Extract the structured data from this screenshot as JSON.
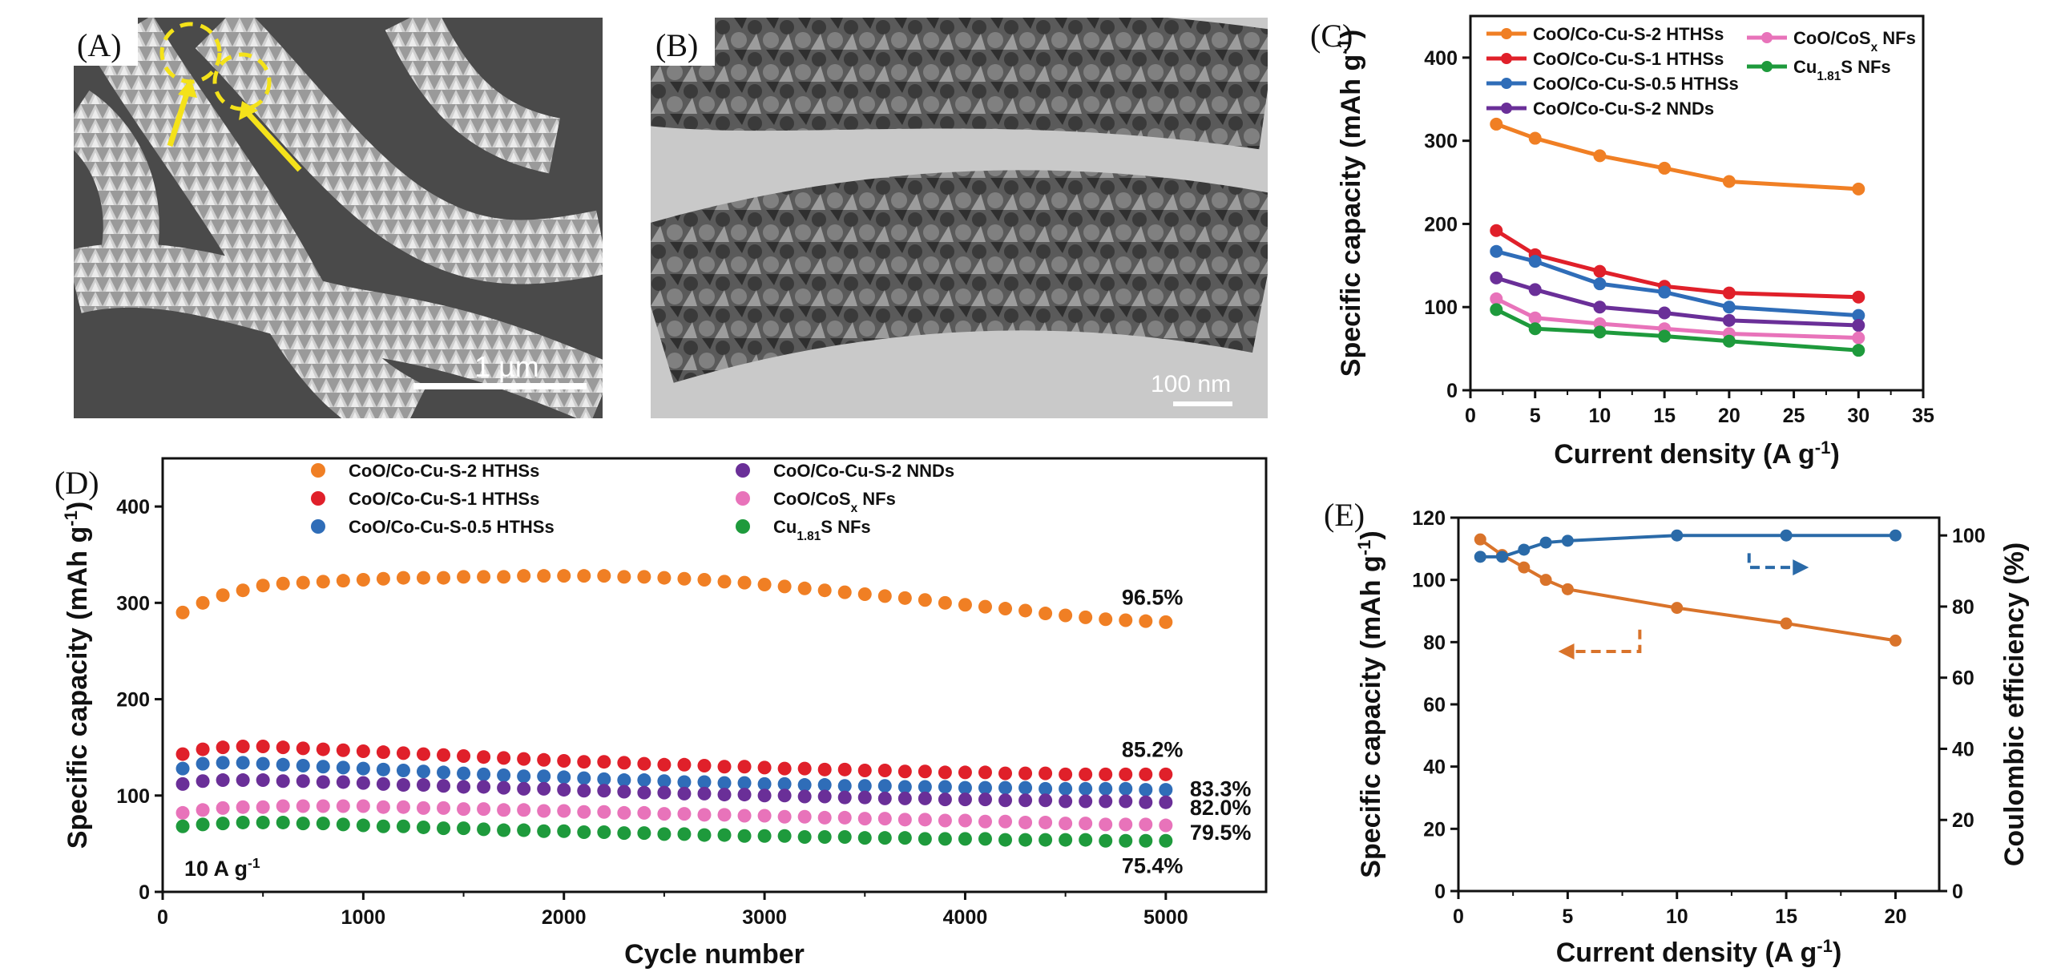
{
  "panels": {
    "A": {
      "letter": "(A)",
      "scale_bar": "1 µm"
    },
    "B": {
      "letter": "(B)",
      "scale_bar": "100 nm"
    },
    "C": {
      "letter": "(C)"
    },
    "D": {
      "letter": "(D)"
    },
    "E": {
      "letter": "(E)"
    }
  },
  "chart_data": [
    {
      "id": "C",
      "type": "line",
      "xlabel": "Current density (A g⁻¹)",
      "ylabel": "Specific capacity (mAh g⁻¹)",
      "xlim": [
        0,
        35
      ],
      "ylim": [
        0,
        450
      ],
      "xticks": [
        0,
        5,
        10,
        15,
        20,
        25,
        30,
        35
      ],
      "yticks": [
        0,
        100,
        200,
        300,
        400
      ],
      "x": [
        2,
        5,
        10,
        15,
        20,
        30
      ],
      "legend_position": "top",
      "series": [
        {
          "name": "CoO/Co-Cu-S-2 HTHSs",
          "color": "#f07f24",
          "values": [
            320,
            303,
            282,
            267,
            251,
            242
          ]
        },
        {
          "name": "CoO/Co-Cu-S-1 HTHSs",
          "color": "#e0202a",
          "values": [
            192,
            163,
            143,
            125,
            117,
            112
          ]
        },
        {
          "name": "CoO/Co-Cu-S-0.5 HTHSs",
          "color": "#2f6db8",
          "values": [
            167,
            155,
            128,
            118,
            100,
            90
          ]
        },
        {
          "name": "CoO/Co-Cu-S-2 NNDs",
          "color": "#6a2f98",
          "values": [
            135,
            121,
            100,
            93,
            84,
            78
          ]
        },
        {
          "name": "CoO/CoSx NFs",
          "color": "#e873ba",
          "values": [
            110,
            87,
            80,
            74,
            68,
            63
          ]
        },
        {
          "name": "Cu1.81S NFs",
          "color": "#1e9a3c",
          "values": [
            97,
            74,
            70,
            65,
            59,
            48
          ]
        }
      ]
    },
    {
      "id": "D",
      "type": "scatter",
      "xlabel": "Cycle number",
      "ylabel": "Specific capacity (mAh g⁻¹)",
      "xlim": [
        0,
        5500
      ],
      "ylim": [
        0,
        450
      ],
      "xticks": [
        0,
        1000,
        2000,
        3000,
        4000,
        5000
      ],
      "yticks": [
        0,
        100,
        200,
        300,
        400
      ],
      "annotation": "10 A g⁻¹",
      "x": [
        100,
        200,
        300,
        400,
        500,
        600,
        700,
        800,
        900,
        1000,
        1100,
        1200,
        1300,
        1400,
        1500,
        1600,
        1700,
        1800,
        1900,
        2000,
        2100,
        2200,
        2300,
        2400,
        2500,
        2600,
        2700,
        2800,
        2900,
        3000,
        3100,
        3200,
        3300,
        3400,
        3500,
        3600,
        3700,
        3800,
        3900,
        4000,
        4100,
        4200,
        4300,
        4400,
        4500,
        4600,
        4700,
        4800,
        4900,
        5000
      ],
      "series": [
        {
          "name": "CoO/Co-Cu-S-2 HTHSs",
          "color": "#f07f24",
          "retention": "96.5%",
          "values": [
            290,
            300,
            308,
            313,
            318,
            320,
            321,
            322,
            323,
            324,
            325,
            326,
            326,
            326,
            327,
            327,
            327,
            328,
            328,
            328,
            328,
            328,
            327,
            327,
            326,
            325,
            324,
            322,
            321,
            319,
            317,
            315,
            313,
            311,
            309,
            307,
            305,
            303,
            300,
            298,
            296,
            294,
            292,
            289,
            287,
            285,
            283,
            282,
            281,
            280
          ]
        },
        {
          "name": "CoO/Co-Cu-S-1 HTHSs",
          "color": "#e0202a",
          "retention": "85.2%",
          "values": [
            143,
            148,
            150,
            151,
            151,
            150,
            149,
            148,
            147,
            146,
            145,
            144,
            143,
            142,
            141,
            140,
            139,
            138,
            137,
            136,
            135,
            135,
            134,
            133,
            132,
            132,
            131,
            130,
            130,
            129,
            128,
            128,
            127,
            127,
            126,
            126,
            125,
            125,
            124,
            124,
            124,
            123,
            123,
            123,
            122,
            122,
            122,
            122,
            122,
            122
          ]
        },
        {
          "name": "CoO/Co-Cu-S-0.5 HTHSs",
          "color": "#2f6db8",
          "retention": "83.3%",
          "values": [
            128,
            133,
            134,
            134,
            133,
            132,
            131,
            130,
            129,
            128,
            127,
            126,
            125,
            124,
            123,
            122,
            121,
            120,
            120,
            119,
            118,
            117,
            116,
            116,
            115,
            114,
            114,
            113,
            113,
            112,
            112,
            111,
            111,
            110,
            110,
            110,
            109,
            109,
            109,
            108,
            108,
            108,
            108,
            107,
            107,
            107,
            107,
            107,
            106,
            106
          ]
        },
        {
          "name": "CoO/Co-Cu-S-2 NNDs",
          "color": "#6a2f98",
          "retention": "82.0%",
          "values": [
            112,
            115,
            116,
            116,
            116,
            115,
            115,
            114,
            114,
            113,
            112,
            111,
            111,
            110,
            109,
            109,
            108,
            107,
            107,
            106,
            105,
            105,
            104,
            103,
            103,
            102,
            102,
            101,
            101,
            100,
            100,
            99,
            99,
            98,
            98,
            97,
            97,
            97,
            96,
            96,
            96,
            95,
            95,
            95,
            94,
            94,
            94,
            94,
            93,
            93
          ]
        },
        {
          "name": "CoO/CoSx NFs",
          "color": "#e873ba",
          "retention": "79.5%",
          "values": [
            82,
            85,
            87,
            88,
            88,
            89,
            89,
            89,
            89,
            89,
            88,
            88,
            87,
            87,
            86,
            86,
            85,
            85,
            84,
            84,
            83,
            83,
            82,
            82,
            81,
            81,
            80,
            80,
            79,
            79,
            78,
            78,
            77,
            77,
            76,
            76,
            75,
            75,
            74,
            74,
            73,
            73,
            72,
            72,
            71,
            71,
            70,
            70,
            70,
            69
          ]
        },
        {
          "name": "Cu1.81S NFs",
          "color": "#1e9a3c",
          "retention": "75.4%",
          "values": [
            68,
            70,
            71,
            72,
            72,
            72,
            71,
            71,
            70,
            69,
            68,
            68,
            67,
            66,
            66,
            65,
            64,
            64,
            63,
            63,
            62,
            62,
            61,
            61,
            60,
            60,
            59,
            59,
            58,
            58,
            58,
            57,
            57,
            57,
            56,
            56,
            56,
            55,
            55,
            55,
            55,
            54,
            54,
            54,
            54,
            54,
            53,
            53,
            53,
            53
          ]
        }
      ]
    },
    {
      "id": "E",
      "type": "line",
      "xlabel": "Current density (A g⁻¹)",
      "ylabel": "Specific capacity (mAh g⁻¹)",
      "y2label": "Coulombic efficiency (%)",
      "xlim": [
        0,
        22
      ],
      "ylim": [
        0,
        120
      ],
      "y2lim": [
        0,
        105
      ],
      "xticks": [
        0,
        5,
        10,
        15,
        20
      ],
      "yticks": [
        0,
        20,
        40,
        60,
        80,
        100,
        120
      ],
      "y2ticks": [
        0,
        20,
        40,
        60,
        80,
        100
      ],
      "series": [
        {
          "name": "Specific capacity",
          "axis": "left",
          "color": "#d9732a",
          "x": [
            1,
            2,
            3,
            4,
            5,
            10,
            15,
            20
          ],
          "values": [
            113,
            108,
            104,
            100,
            97,
            91,
            86,
            80.5
          ]
        },
        {
          "name": "Coulombic efficiency",
          "axis": "right",
          "color": "#2a6aa8",
          "x": [
            1,
            2,
            3,
            4,
            5,
            10,
            15,
            20
          ],
          "values": [
            94,
            94,
            96,
            98,
            98.5,
            100,
            100,
            100
          ]
        }
      ]
    }
  ]
}
